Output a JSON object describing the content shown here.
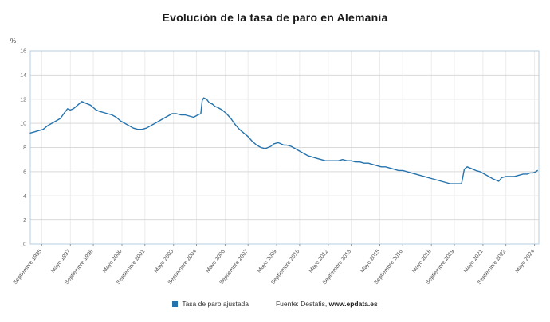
{
  "title": "Evolución de la tasa de paro en Alemania",
  "y_axis_unit": "%",
  "legend": {
    "label": "Tasa de paro ajustada"
  },
  "source": {
    "prefix": "Fuente: Destatis, ",
    "site": "www.epdata.es"
  },
  "colors": {
    "line": "#2573ad",
    "legend_swatch": "#2573ad",
    "grid_h": "#d9d9d9",
    "grid_v": "#ececec",
    "plot_border": "#b7cfe2",
    "tick": "#999999"
  },
  "chart_data": {
    "type": "line",
    "title": "Evolución de la tasa de paro en Alemania",
    "ylabel": "%",
    "xlabel": "",
    "ylim": [
      0,
      16
    ],
    "y_step": 2,
    "grid": true,
    "legend_position": "bottom",
    "series_name": "Tasa de paro ajustada",
    "x_ticks": [
      {
        "label": "Septiembre 1995",
        "m": 8
      },
      {
        "label": "Mayo 1997",
        "m": 28
      },
      {
        "label": "Septiembre 1998",
        "m": 44
      },
      {
        "label": "Mayo 2000",
        "m": 64
      },
      {
        "label": "Septiembre 2001",
        "m": 80
      },
      {
        "label": "Mayo 2003",
        "m": 100
      },
      {
        "label": "Septiembre 2004",
        "m": 116
      },
      {
        "label": "Mayo 2006",
        "m": 136
      },
      {
        "label": "Septiembre 2007",
        "m": 152
      },
      {
        "label": "Mayo 2009",
        "m": 172
      },
      {
        "label": "Septiembre 2010",
        "m": 188
      },
      {
        "label": "Mayo 2012",
        "m": 208
      },
      {
        "label": "Septiembre 2013",
        "m": 224
      },
      {
        "label": "Mayo 2015",
        "m": 244
      },
      {
        "label": "Septiembre 2016",
        "m": 260
      },
      {
        "label": "Mayo 2018",
        "m": 280
      },
      {
        "label": "Septiembre 2019",
        "m": 296
      },
      {
        "label": "Mayo 2021",
        "m": 316
      },
      {
        "label": "Septiembre 2022",
        "m": 332
      },
      {
        "label": "Mayo 2024",
        "m": 352
      }
    ],
    "points": [
      [
        "1995-01",
        9.2
      ],
      [
        "1995-04",
        9.3
      ],
      [
        "1995-07",
        9.4
      ],
      [
        "1995-10",
        9.5
      ],
      [
        "1996-01",
        9.8
      ],
      [
        "1996-04",
        10.0
      ],
      [
        "1996-07",
        10.2
      ],
      [
        "1996-10",
        10.4
      ],
      [
        "1997-01",
        10.9
      ],
      [
        "1997-03",
        11.2
      ],
      [
        "1997-05",
        11.1
      ],
      [
        "1997-07",
        11.2
      ],
      [
        "1997-09",
        11.4
      ],
      [
        "1997-11",
        11.6
      ],
      [
        "1998-01",
        11.8
      ],
      [
        "1998-03",
        11.7
      ],
      [
        "1998-05",
        11.6
      ],
      [
        "1998-07",
        11.5
      ],
      [
        "1998-09",
        11.3
      ],
      [
        "1998-11",
        11.1
      ],
      [
        "1999-01",
        11.0
      ],
      [
        "1999-04",
        10.9
      ],
      [
        "1999-07",
        10.8
      ],
      [
        "1999-10",
        10.7
      ],
      [
        "2000-01",
        10.5
      ],
      [
        "2000-04",
        10.2
      ],
      [
        "2000-07",
        10.0
      ],
      [
        "2000-10",
        9.8
      ],
      [
        "2001-01",
        9.6
      ],
      [
        "2001-04",
        9.5
      ],
      [
        "2001-07",
        9.5
      ],
      [
        "2001-10",
        9.6
      ],
      [
        "2002-01",
        9.8
      ],
      [
        "2002-04",
        10.0
      ],
      [
        "2002-07",
        10.2
      ],
      [
        "2002-10",
        10.4
      ],
      [
        "2003-01",
        10.6
      ],
      [
        "2003-04",
        10.8
      ],
      [
        "2003-07",
        10.8
      ],
      [
        "2003-10",
        10.7
      ],
      [
        "2004-01",
        10.7
      ],
      [
        "2004-04",
        10.6
      ],
      [
        "2004-07",
        10.5
      ],
      [
        "2004-10",
        10.7
      ],
      [
        "2004-12",
        10.8
      ],
      [
        "2005-01",
        11.9
      ],
      [
        "2005-02",
        12.1
      ],
      [
        "2005-04",
        12.0
      ],
      [
        "2005-06",
        11.7
      ],
      [
        "2005-08",
        11.6
      ],
      [
        "2005-10",
        11.4
      ],
      [
        "2005-12",
        11.3
      ],
      [
        "2006-03",
        11.1
      ],
      [
        "2006-06",
        10.8
      ],
      [
        "2006-09",
        10.4
      ],
      [
        "2006-12",
        9.9
      ],
      [
        "2007-03",
        9.5
      ],
      [
        "2007-06",
        9.2
      ],
      [
        "2007-09",
        8.9
      ],
      [
        "2007-12",
        8.5
      ],
      [
        "2008-03",
        8.2
      ],
      [
        "2008-06",
        8.0
      ],
      [
        "2008-09",
        7.9
      ],
      [
        "2008-11",
        8.0
      ],
      [
        "2009-01",
        8.1
      ],
      [
        "2009-03",
        8.3
      ],
      [
        "2009-06",
        8.4
      ],
      [
        "2009-08",
        8.3
      ],
      [
        "2009-10",
        8.2
      ],
      [
        "2009-12",
        8.2
      ],
      [
        "2010-03",
        8.1
      ],
      [
        "2010-06",
        7.9
      ],
      [
        "2010-09",
        7.7
      ],
      [
        "2010-12",
        7.5
      ],
      [
        "2011-03",
        7.3
      ],
      [
        "2011-06",
        7.2
      ],
      [
        "2011-09",
        7.1
      ],
      [
        "2011-12",
        7.0
      ],
      [
        "2012-03",
        6.9
      ],
      [
        "2012-06",
        6.9
      ],
      [
        "2012-09",
        6.9
      ],
      [
        "2012-12",
        6.9
      ],
      [
        "2013-03",
        7.0
      ],
      [
        "2013-06",
        6.9
      ],
      [
        "2013-09",
        6.9
      ],
      [
        "2013-12",
        6.8
      ],
      [
        "2014-03",
        6.8
      ],
      [
        "2014-06",
        6.7
      ],
      [
        "2014-09",
        6.7
      ],
      [
        "2014-12",
        6.6
      ],
      [
        "2015-03",
        6.5
      ],
      [
        "2015-06",
        6.4
      ],
      [
        "2015-09",
        6.4
      ],
      [
        "2015-12",
        6.3
      ],
      [
        "2016-03",
        6.2
      ],
      [
        "2016-06",
        6.1
      ],
      [
        "2016-09",
        6.1
      ],
      [
        "2016-12",
        6.0
      ],
      [
        "2017-03",
        5.9
      ],
      [
        "2017-06",
        5.8
      ],
      [
        "2017-09",
        5.7
      ],
      [
        "2017-12",
        5.6
      ],
      [
        "2018-03",
        5.5
      ],
      [
        "2018-06",
        5.4
      ],
      [
        "2018-09",
        5.3
      ],
      [
        "2018-12",
        5.2
      ],
      [
        "2019-03",
        5.1
      ],
      [
        "2019-06",
        5.0
      ],
      [
        "2019-09",
        5.0
      ],
      [
        "2019-12",
        5.0
      ],
      [
        "2020-02",
        5.0
      ],
      [
        "2020-04",
        6.2
      ],
      [
        "2020-06",
        6.4
      ],
      [
        "2020-08",
        6.3
      ],
      [
        "2020-10",
        6.2
      ],
      [
        "2020-12",
        6.1
      ],
      [
        "2021-03",
        6.0
      ],
      [
        "2021-06",
        5.8
      ],
      [
        "2021-09",
        5.6
      ],
      [
        "2021-12",
        5.4
      ],
      [
        "2022-02",
        5.3
      ],
      [
        "2022-04",
        5.2
      ],
      [
        "2022-06",
        5.5
      ],
      [
        "2022-09",
        5.6
      ],
      [
        "2022-12",
        5.6
      ],
      [
        "2023-03",
        5.6
      ],
      [
        "2023-06",
        5.7
      ],
      [
        "2023-09",
        5.8
      ],
      [
        "2023-12",
        5.8
      ],
      [
        "2024-02",
        5.9
      ],
      [
        "2024-04",
        5.9
      ],
      [
        "2024-06",
        6.0
      ],
      [
        "2024-07",
        6.1
      ]
    ]
  }
}
